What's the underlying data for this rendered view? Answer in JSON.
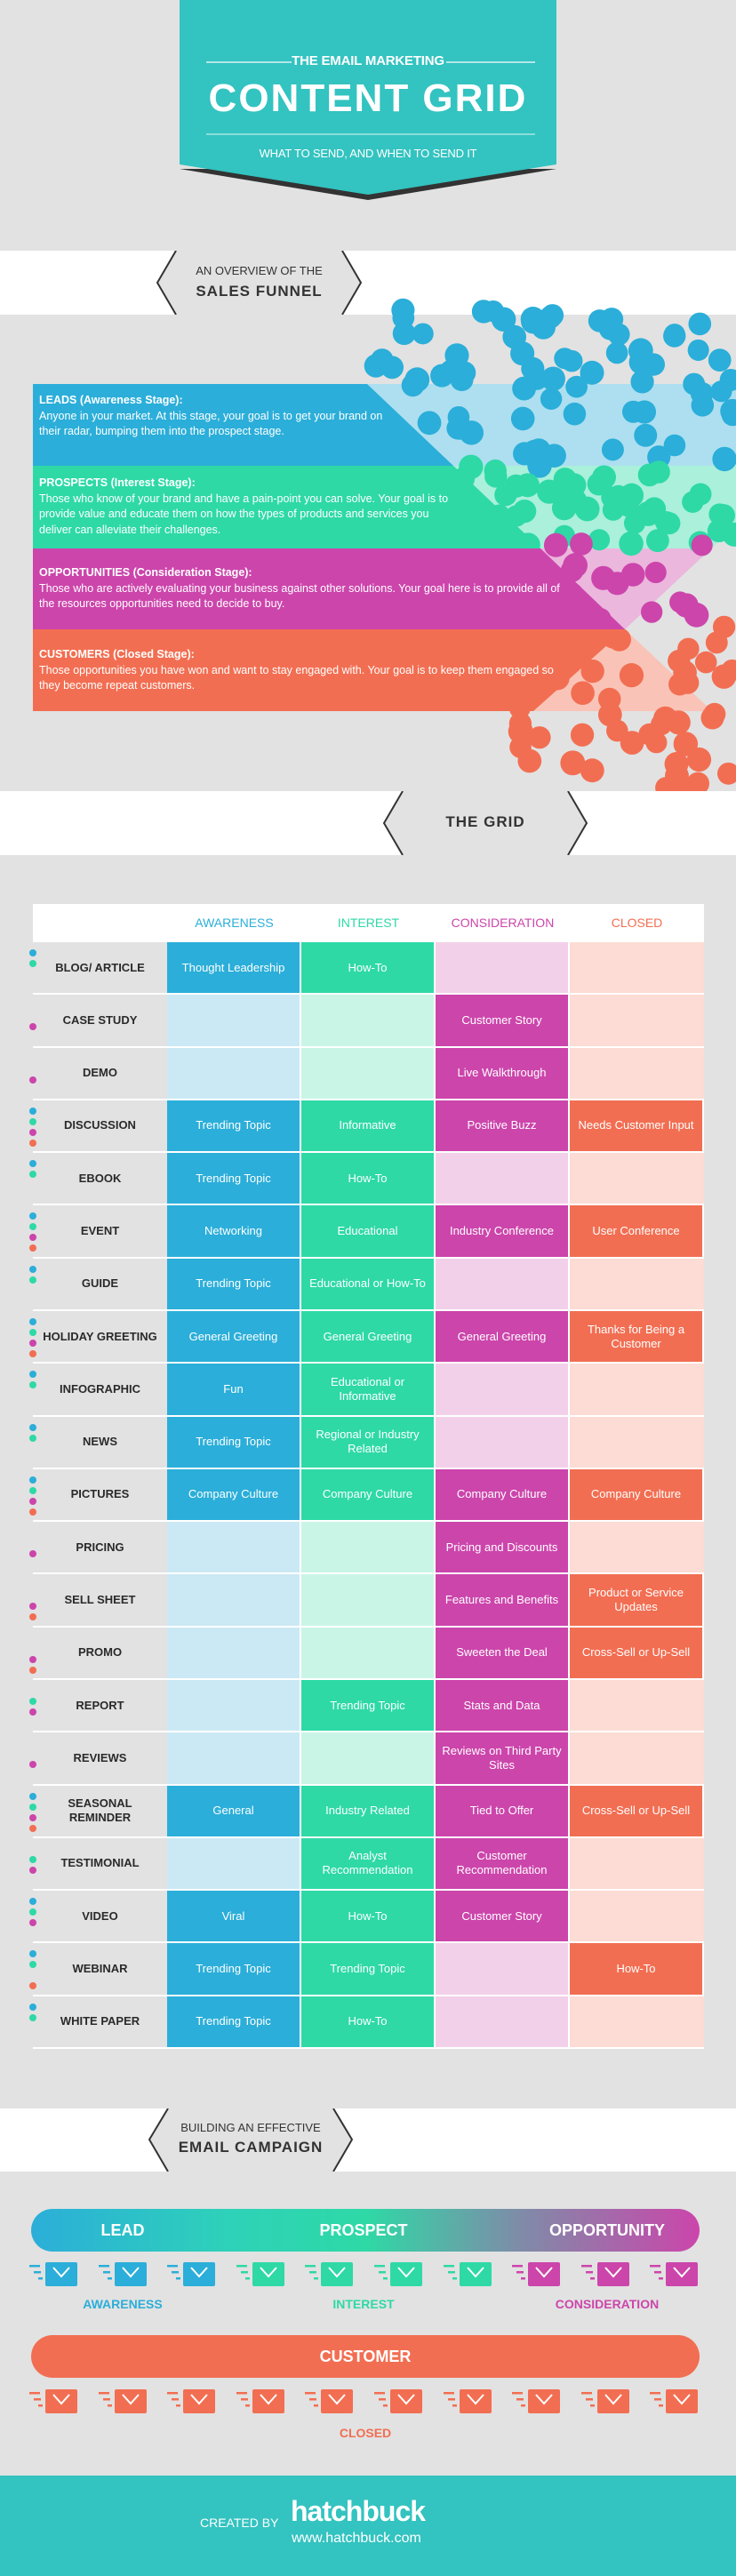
{
  "colors": {
    "teal": "#33c3c0",
    "awareness": "#2baed9",
    "interest": "#2ed9a6",
    "consideration": "#cc45ab",
    "closed": "#f26e52",
    "awareness_light": "#cbe9f4",
    "interest_light": "#c9f5e6",
    "consideration_light": "#f3d0e9",
    "closed_light": "#fcdcd4"
  },
  "header": {
    "supertitle": "THE EMAIL MARKETING",
    "title": "CONTENT GRID",
    "subtitle": "WHAT TO SEND, AND WHEN TO SEND IT"
  },
  "funnel": {
    "heading_small": "AN OVERVIEW OF THE",
    "heading_large": "SALES FUNNEL",
    "stages": [
      {
        "title": "LEADS (Awareness Stage):",
        "text": "Anyone in your market.  At this stage, your goal is to get your brand on their radar, bumping them into the prospect stage."
      },
      {
        "title": "PROSPECTS (Interest Stage):",
        "text": "Those who know of your brand and have a pain-point you can solve. Your goal is to provide value and educate them on how the types of products and services you deliver can alleviate their challenges."
      },
      {
        "title": "OPPORTUNITIES (Consideration Stage):",
        "text": "Those who are actively evaluating your business against other solutions.  Your goal here is to provide all of the resources opportunities need to decide to buy."
      },
      {
        "title": "CUSTOMERS (Closed Stage):",
        "text": "Those opportunities you have won and want to stay engaged with.  Your goal is to keep them engaged so they become repeat customers."
      }
    ]
  },
  "grid": {
    "heading": "THE GRID",
    "columns": [
      "AWARENESS",
      "INTEREST",
      "CONSIDERATION",
      "CLOSED"
    ],
    "rows": [
      {
        "label": "BLOG/ ARTICLE",
        "cells": [
          "Thought Leadership",
          "How-To",
          "",
          ""
        ]
      },
      {
        "label": "CASE STUDY",
        "cells": [
          "",
          "",
          "Customer Story",
          ""
        ]
      },
      {
        "label": "DEMO",
        "cells": [
          "",
          "",
          "Live Walkthrough",
          ""
        ]
      },
      {
        "label": "DISCUSSION",
        "cells": [
          "Trending Topic",
          "Informative",
          "Positive Buzz",
          "Needs Customer Input"
        ]
      },
      {
        "label": "EBOOK",
        "cells": [
          "Trending Topic",
          "How-To",
          "",
          ""
        ]
      },
      {
        "label": "EVENT",
        "cells": [
          "Networking",
          "Educational",
          "Industry Conference",
          "User Conference"
        ]
      },
      {
        "label": "GUIDE",
        "cells": [
          "Trending Topic",
          "Educational or How-To",
          "",
          ""
        ]
      },
      {
        "label": "HOLIDAY GREETING",
        "cells": [
          "General Greeting",
          "General Greeting",
          "General Greeting",
          "Thanks for Being a Customer"
        ]
      },
      {
        "label": "INFOGRAPHIC",
        "cells": [
          "Fun",
          "Educational or Informative",
          "",
          ""
        ]
      },
      {
        "label": "NEWS",
        "cells": [
          "Trending Topic",
          "Regional or Industry Related",
          "",
          ""
        ]
      },
      {
        "label": "PICTURES",
        "cells": [
          "Company Culture",
          "Company Culture",
          "Company Culture",
          "Company Culture"
        ]
      },
      {
        "label": "PRICING",
        "cells": [
          "",
          "",
          "Pricing and Discounts",
          ""
        ]
      },
      {
        "label": "SELL SHEET",
        "cells": [
          "",
          "",
          "Features and Benefits",
          "Product or Service Updates"
        ]
      },
      {
        "label": "PROMO",
        "cells": [
          "",
          "",
          "Sweeten the Deal",
          "Cross-Sell or Up-Sell"
        ]
      },
      {
        "label": "REPORT",
        "cells": [
          "",
          "Trending Topic",
          "Stats and Data",
          ""
        ]
      },
      {
        "label": "REVIEWS",
        "cells": [
          "",
          "",
          "Reviews on Third Party Sites",
          ""
        ]
      },
      {
        "label": "SEASONAL REMINDER",
        "cells": [
          "General",
          "Industry Related",
          "Tied to Offer",
          "Cross-Sell or Up-Sell"
        ]
      },
      {
        "label": "TESTIMONIAL",
        "cells": [
          "",
          "Analyst Recommendation",
          "Customer Recommendation",
          ""
        ]
      },
      {
        "label": "VIDEO",
        "cells": [
          "Viral",
          "How-To",
          "Customer Story",
          ""
        ]
      },
      {
        "label": "WEBINAR",
        "cells": [
          "Trending Topic",
          "Trending Topic",
          "",
          "How-To"
        ]
      },
      {
        "label": "WHITE PAPER",
        "cells": [
          "Trending Topic",
          "How-To",
          "",
          ""
        ]
      }
    ]
  },
  "campaign": {
    "heading_small": "BUILDING AN EFFECTIVE",
    "heading_large": "EMAIL CAMPAIGN",
    "bar1": [
      "LEAD",
      "PROSPECT",
      "OPPORTUNITY"
    ],
    "bar1_stages": [
      "AWARENESS",
      "INTEREST",
      "CONSIDERATION"
    ],
    "bar1_emails": [
      "awareness",
      "awareness",
      "awareness",
      "interest",
      "interest",
      "interest",
      "interest",
      "consideration",
      "consideration",
      "consideration"
    ],
    "bar2": "CUSTOMER",
    "bar2_stage": "CLOSED",
    "bar2_email_count": 10,
    "email_icon": "email-envelope-icon"
  },
  "footer": {
    "created_by": "CREATED BY",
    "brand": "hatchbuck",
    "url": "www.hatchbuck.com"
  }
}
